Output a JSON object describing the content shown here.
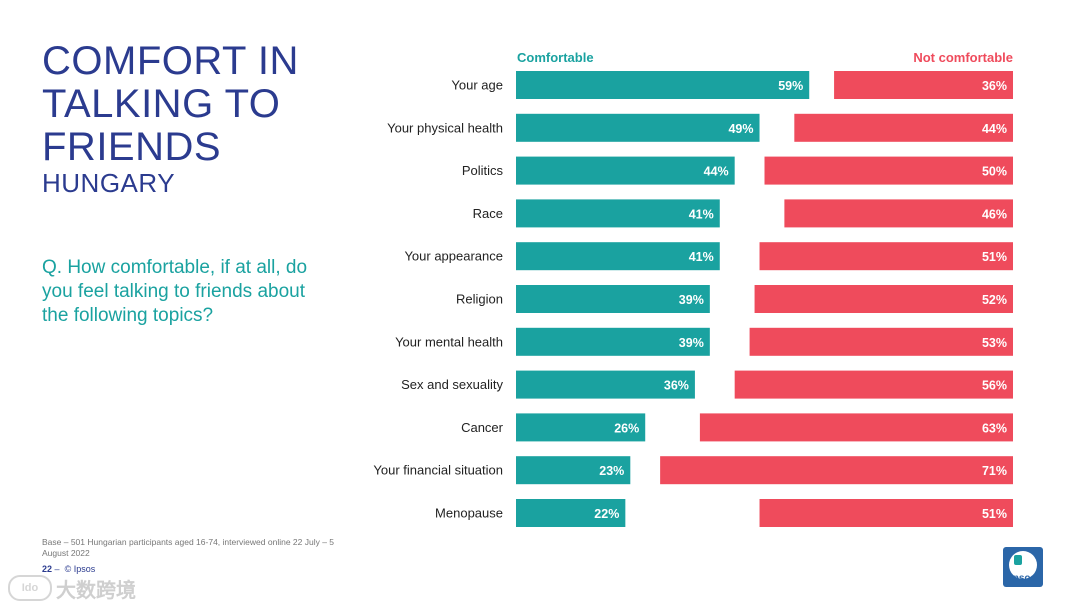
{
  "header": {
    "title": "COMFORT IN TALKING TO FRIENDS",
    "subtitle": "HUNGARY"
  },
  "question": "Q. How comfortable, if at all, do you feel talking to friends about the following topics?",
  "base_note": "Base – 501 Hungarian participants aged 16-74, interviewed online 22 July – 5 August 2022",
  "footer": {
    "page_number": "22",
    "separator": "–",
    "copyright": "© Ipsos"
  },
  "logo": {
    "label": "Ipsos"
  },
  "watermark": {
    "text": "大数跨境",
    "logo_text": "Ido"
  },
  "colors": {
    "comfortable": "#1aa2a0",
    "not_comfortable": "#ef4b5c",
    "title": "#2b3b8f"
  },
  "chart_data": {
    "type": "bar",
    "orientation": "horizontal-diverging",
    "categories": [
      "Your age",
      "Your physical health",
      "Politics",
      "Race",
      "Your appearance",
      "Religion",
      "Your mental health",
      "Sex and sexuality",
      "Cancer",
      "Your financial situation",
      "Menopause"
    ],
    "series": [
      {
        "name": "Comfortable",
        "values": [
          59,
          49,
          44,
          41,
          41,
          39,
          39,
          36,
          26,
          23,
          22
        ],
        "labels": [
          "59%",
          "49%",
          "44%",
          "41%",
          "41%",
          "39%",
          "39%",
          "36%",
          "26%",
          "23%",
          "22%"
        ],
        "anchor": "left"
      },
      {
        "name": "Not comfortable",
        "values": [
          36,
          44,
          50,
          46,
          51,
          52,
          53,
          56,
          63,
          71,
          51
        ],
        "labels": [
          "36%",
          "44%",
          "50%",
          "46%",
          "51%",
          "52%",
          "53%",
          "56%",
          "63%",
          "71%",
          "51%"
        ],
        "anchor": "right"
      }
    ],
    "xlim": [
      0,
      100
    ],
    "legend": [
      "Comfortable",
      "Not comfortable"
    ]
  }
}
